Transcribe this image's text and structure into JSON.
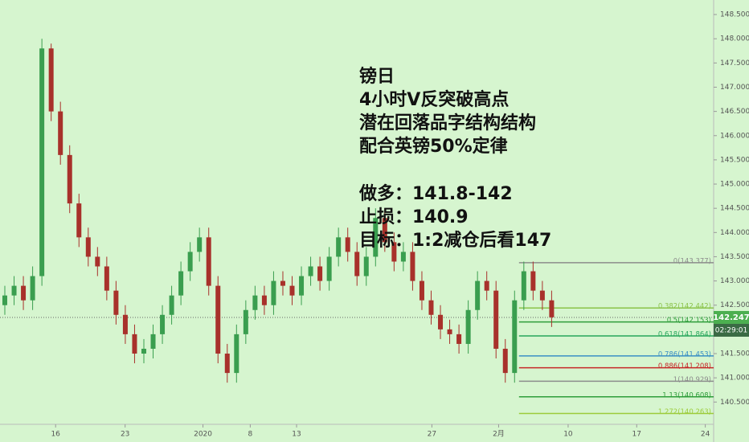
{
  "chart_data": {
    "type": "candlestick",
    "x": [
      0,
      1,
      2,
      3,
      4,
      5,
      6,
      7,
      8,
      9,
      10,
      11,
      12,
      13,
      14,
      15,
      16,
      17,
      18,
      19,
      20,
      21,
      22,
      23,
      24,
      25,
      26,
      27,
      28,
      29,
      30,
      31,
      32,
      33,
      34,
      35,
      36,
      37,
      38,
      39,
      40,
      41,
      42,
      43,
      44,
      45,
      46,
      47,
      48,
      49,
      50,
      51,
      52,
      53,
      54,
      55,
      56,
      57,
      58,
      59
    ],
    "open": [
      142.5,
      142.7,
      142.9,
      142.6,
      143.1,
      147.8,
      146.5,
      145.6,
      144.6,
      143.9,
      143.5,
      143.3,
      142.8,
      142.3,
      141.9,
      141.5,
      141.6,
      141.9,
      142.3,
      142.7,
      143.2,
      143.6,
      143.9,
      142.9,
      141.5,
      141.1,
      141.9,
      142.4,
      142.7,
      142.5,
      143.0,
      142.9,
      142.7,
      143.1,
      143.3,
      143.0,
      143.5,
      143.9,
      143.6,
      143.1,
      143.5,
      144.3,
      143.8,
      143.4,
      143.6,
      143.0,
      142.6,
      142.3,
      142.0,
      141.9,
      141.7,
      142.4,
      143.0,
      142.8,
      141.6,
      141.1,
      142.6,
      143.2,
      142.8,
      142.6
    ],
    "high": [
      142.9,
      143.1,
      143.1,
      143.3,
      148.0,
      147.9,
      146.7,
      145.8,
      144.8,
      144.1,
      143.7,
      143.5,
      143.0,
      142.5,
      142.1,
      141.8,
      142.1,
      142.5,
      142.9,
      143.4,
      143.8,
      144.1,
      144.1,
      143.1,
      141.7,
      142.1,
      142.6,
      142.9,
      142.9,
      143.2,
      143.2,
      143.1,
      143.3,
      143.5,
      143.5,
      143.7,
      144.1,
      144.1,
      143.8,
      143.7,
      144.5,
      144.5,
      144.0,
      143.8,
      143.8,
      143.2,
      142.8,
      142.5,
      142.2,
      142.1,
      142.6,
      143.2,
      143.2,
      143.0,
      141.8,
      142.8,
      143.4,
      143.4,
      143.0,
      142.8
    ],
    "low": [
      142.3,
      142.5,
      142.4,
      142.4,
      142.9,
      146.3,
      145.4,
      144.4,
      143.7,
      143.3,
      143.1,
      142.6,
      142.1,
      141.7,
      141.3,
      141.3,
      141.4,
      141.7,
      142.1,
      142.5,
      143.0,
      143.4,
      142.7,
      141.3,
      140.9,
      140.9,
      141.7,
      142.2,
      142.3,
      142.3,
      142.7,
      142.5,
      142.5,
      142.9,
      142.8,
      142.8,
      143.3,
      143.4,
      142.9,
      142.9,
      143.3,
      143.6,
      143.2,
      143.2,
      142.8,
      142.4,
      142.1,
      141.8,
      141.7,
      141.5,
      141.5,
      142.2,
      142.6,
      141.4,
      140.9,
      140.9,
      142.4,
      142.6,
      142.4,
      142.05
    ],
    "close": [
      142.7,
      142.9,
      142.6,
      143.1,
      147.8,
      146.5,
      145.6,
      144.6,
      143.9,
      143.5,
      143.3,
      142.8,
      142.3,
      141.9,
      141.5,
      141.6,
      141.9,
      142.3,
      142.7,
      143.2,
      143.6,
      143.9,
      142.9,
      141.5,
      141.1,
      141.9,
      142.4,
      142.7,
      142.5,
      143.0,
      142.9,
      142.7,
      143.1,
      143.3,
      143.0,
      143.5,
      143.9,
      143.6,
      143.1,
      143.5,
      144.3,
      143.8,
      143.4,
      143.6,
      143.0,
      142.6,
      142.3,
      142.0,
      141.9,
      141.7,
      142.4,
      143.0,
      142.8,
      141.6,
      141.1,
      142.6,
      143.2,
      142.8,
      142.6,
      142.25
    ],
    "up_color": "#3a9e4f",
    "down_color": "#a8312b",
    "xlim": [
      0,
      77
    ],
    "xticks": [
      {
        "value": 6,
        "label": "16"
      },
      {
        "value": 13.5,
        "label": "23"
      },
      {
        "value": 21.9,
        "label": "2020"
      },
      {
        "value": 27,
        "label": "8"
      },
      {
        "value": 32,
        "label": "13"
      },
      {
        "value": 46.6,
        "label": "27"
      },
      {
        "value": 53.8,
        "label": "2月"
      },
      {
        "value": 61.3,
        "label": "10"
      },
      {
        "value": 68.7,
        "label": "17"
      },
      {
        "value": 76.1,
        "label": "24"
      }
    ],
    "ylim": [
      140.04,
      148.8
    ],
    "yticks": [
      {
        "value": 140.5,
        "label": "140.500"
      },
      {
        "value": 141,
        "label": "141.000"
      },
      {
        "value": 141.5,
        "label": "141.500"
      },
      {
        "value": 142,
        "label": "142.000"
      },
      {
        "value": 142.5,
        "label": "142.500"
      },
      {
        "value": 143,
        "label": "143.000"
      },
      {
        "value": 143.5,
        "label": "143.500"
      },
      {
        "value": 144,
        "label": "144.000"
      },
      {
        "value": 144.5,
        "label": "144.500"
      },
      {
        "value": 145,
        "label": "145.000"
      },
      {
        "value": 145.5,
        "label": "145.500"
      },
      {
        "value": 146,
        "label": "146.000"
      },
      {
        "value": 146.5,
        "label": "146.500"
      },
      {
        "value": 147,
        "label": "147.000"
      },
      {
        "value": 147.5,
        "label": "147.500"
      },
      {
        "value": 148,
        "label": "148.000"
      },
      {
        "value": 148.5,
        "label": "148.500"
      }
    ],
    "current_price": {
      "value": 142.247,
      "label": "142.247",
      "countdown": "02:29:01",
      "color": "#4caf50"
    },
    "fib_start_x": 56,
    "fib_levels": [
      {
        "value": 143.377,
        "label": "0(143.377)",
        "color": "#8c8c8c"
      },
      {
        "value": 142.442,
        "label": "0.382(142.442)",
        "color": "#8bc34a"
      },
      {
        "value": 142.153,
        "label": "0.5(142.153)",
        "color": "#2e9d3a"
      },
      {
        "value": 141.864,
        "label": "0.618(141.864)",
        "color": "#26a65b"
      },
      {
        "value": 141.453,
        "label": "0.786(141.453)",
        "color": "#3b8fc4"
      },
      {
        "value": 141.208,
        "label": "0.886(141.208)",
        "color": "#c62828"
      },
      {
        "value": 140.929,
        "label": "1(140.929)",
        "color": "#8c8c8c"
      },
      {
        "value": 140.608,
        "label": "1.13(140.608)",
        "color": "#2e9d3a"
      },
      {
        "value": 140.263,
        "label": "1.272(140.263)",
        "color": "#9ccc3a"
      }
    ],
    "annotation_lines": [
      "镑日",
      "4小时V反突破高点",
      "潜在回落品字结构结构",
      "配合英镑50%定律"
    ],
    "trade_lines": [
      "做多：141.8-142",
      "止损：140.9",
      "目标：1:2减仓后看147"
    ]
  }
}
